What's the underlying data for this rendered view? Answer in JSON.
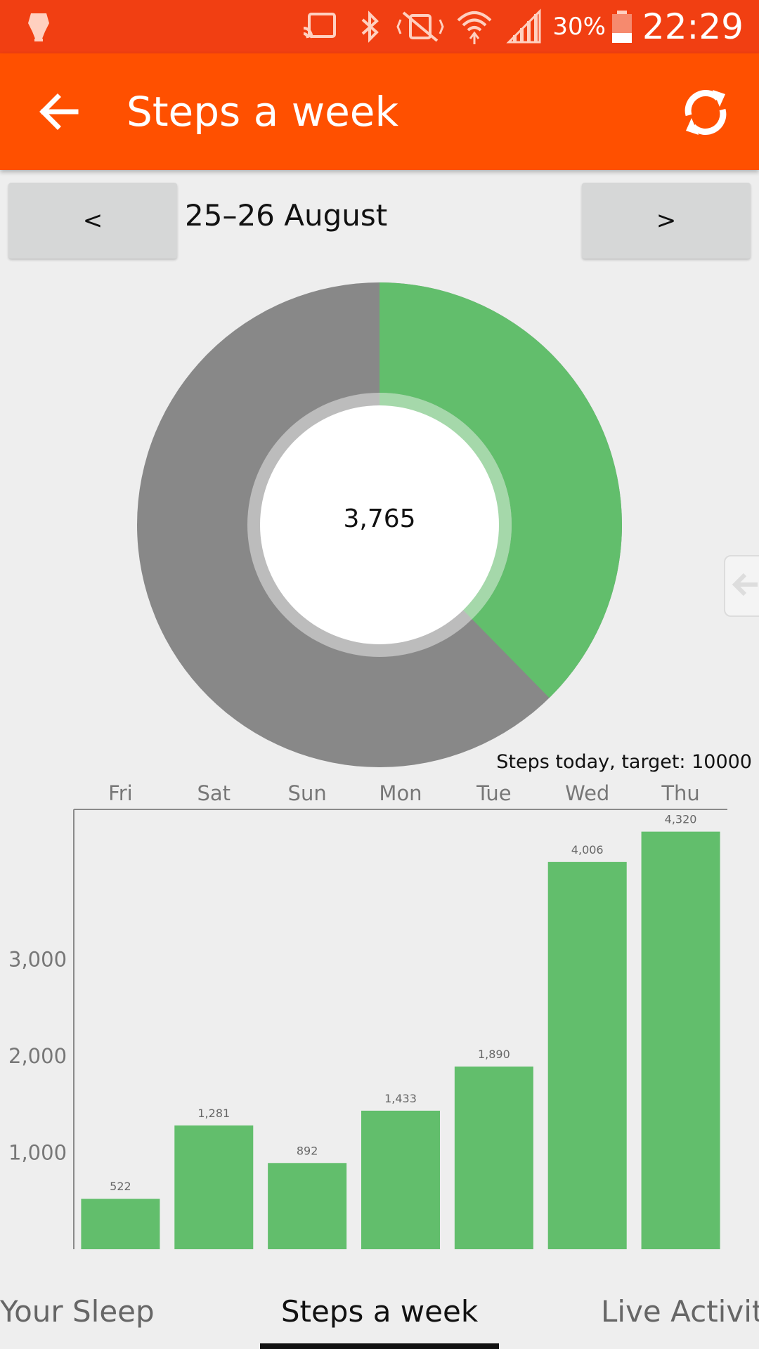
{
  "status_bar": {
    "time": "22:29",
    "battery_percent": "30%",
    "icons": [
      "app-notification-icon",
      "cast-icon",
      "bluetooth-icon",
      "vibrate-off-icon",
      "wifi-icon",
      "signal-icon",
      "battery-icon"
    ]
  },
  "app_bar": {
    "title": "Steps a week",
    "back_icon": "arrow-left-icon",
    "refresh_icon": "refresh-icon"
  },
  "date_nav": {
    "prev_label": "<",
    "next_label": ">",
    "range": "25–26 August"
  },
  "today": {
    "steps": "3,765",
    "steps_value": 3765,
    "target": 10000,
    "caption": "Steps today, target: 10000"
  },
  "colors": {
    "status_bar": "#f13f12",
    "app_bar": "#ff5000",
    "progress": "#62be6c",
    "remaining": "#888888",
    "background": "#eeeeee"
  },
  "chart_data": {
    "type": "bar",
    "categories": [
      "Fri",
      "Sat",
      "Sun",
      "Mon",
      "Tue",
      "Wed",
      "Thu"
    ],
    "values": [
      522,
      1281,
      892,
      1433,
      1890,
      4006,
      4320
    ],
    "value_labels": [
      "522",
      "1,281",
      "892",
      "1,433",
      "1,890",
      "4,006",
      "4,320"
    ],
    "y_ticks": [
      1000,
      2000,
      3000
    ],
    "y_tick_labels": [
      "1,000",
      "2,000",
      "3,000"
    ],
    "ylim": [
      0,
      4550
    ],
    "grid": false,
    "legend": "none"
  },
  "bottom_tabs": {
    "left": "Your Sleep",
    "center": "Steps a week",
    "right": "Live Activity"
  }
}
